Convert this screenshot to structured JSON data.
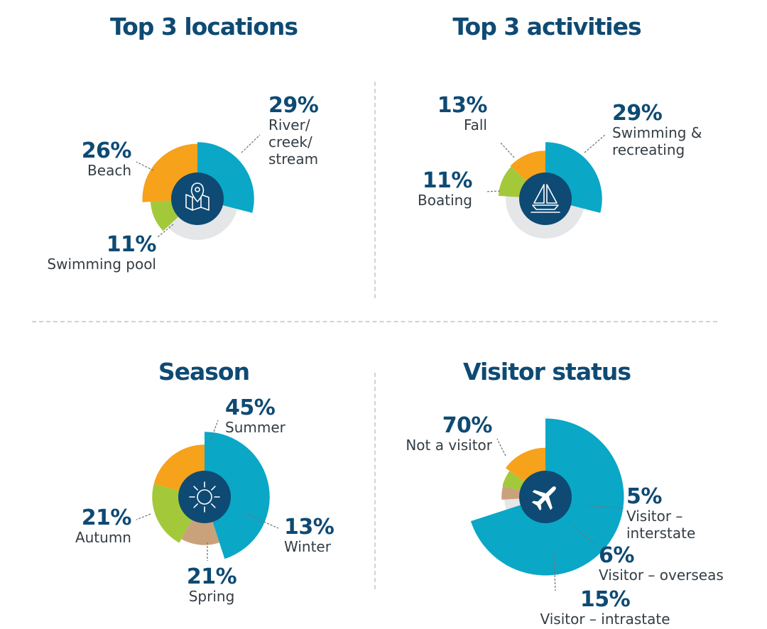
{
  "colors": {
    "blue": "#0aa7c6",
    "orange": "#f7a21b",
    "green": "#a3c93a",
    "tan": "#c9a27c",
    "grey": "#e5e6e8",
    "navy": "#0e4a73"
  },
  "chart_data": [
    {
      "type": "pie",
      "title": "Top 3 locations",
      "icon": "map-pin-icon",
      "slices": [
        {
          "label": "River/ creek/ stream",
          "value": 29,
          "color": "blue",
          "pct_label": "29%",
          "desc_lines": [
            "River/",
            "creek/",
            "stream"
          ]
        },
        {
          "label": "Beach",
          "value": 26,
          "color": "orange",
          "pct_label": "26%",
          "desc_lines": [
            "Beach"
          ]
        },
        {
          "label": "Swimming pool",
          "value": 11,
          "color": "green",
          "pct_label": "11%",
          "desc_lines": [
            "Swimming pool"
          ]
        }
      ]
    },
    {
      "type": "pie",
      "title": "Top 3 activities",
      "icon": "sailboat-icon",
      "slices": [
        {
          "label": "Swimming & recreating",
          "value": 29,
          "color": "blue",
          "pct_label": "29%",
          "desc_lines": [
            "Swimming &",
            "recreating"
          ]
        },
        {
          "label": "Fall",
          "value": 13,
          "color": "orange",
          "pct_label": "13%",
          "desc_lines": [
            "Fall"
          ]
        },
        {
          "label": "Boating",
          "value": 11,
          "color": "green",
          "pct_label": "11%",
          "desc_lines": [
            "Boating"
          ]
        }
      ]
    },
    {
      "type": "pie",
      "title": "Season",
      "icon": "sun-icon",
      "slices": [
        {
          "label": "Summer",
          "value": 45,
          "color": "blue",
          "pct_label": "45%",
          "desc_lines": [
            "Summer"
          ]
        },
        {
          "label": "Autumn",
          "value": 21,
          "color": "orange",
          "pct_label": "21%",
          "desc_lines": [
            "Autumn"
          ]
        },
        {
          "label": "Spring",
          "value": 21,
          "color": "green",
          "pct_label": "21%",
          "desc_lines": [
            "Spring"
          ]
        },
        {
          "label": "Winter",
          "value": 13,
          "color": "tan",
          "pct_label": "13%",
          "desc_lines": [
            "Winter"
          ]
        }
      ]
    },
    {
      "type": "pie",
      "title": "Visitor status",
      "icon": "airplane-icon",
      "slices": [
        {
          "label": "Not a visitor",
          "value": 70,
          "color": "blue",
          "pct_label": "70%",
          "desc_lines": [
            "Not a visitor"
          ]
        },
        {
          "label": "Visitor – intrastate",
          "value": 15,
          "color": "orange",
          "pct_label": "15%",
          "desc_lines": [
            "Visitor – intrastate"
          ]
        },
        {
          "label": "Visitor – overseas",
          "value": 6,
          "color": "green",
          "pct_label": "6%",
          "desc_lines": [
            "Visitor – overseas"
          ]
        },
        {
          "label": "Visitor – interstate",
          "value": 5,
          "color": "tan",
          "pct_label": "5%",
          "desc_lines": [
            "Visitor –",
            "interstate"
          ]
        }
      ]
    }
  ]
}
